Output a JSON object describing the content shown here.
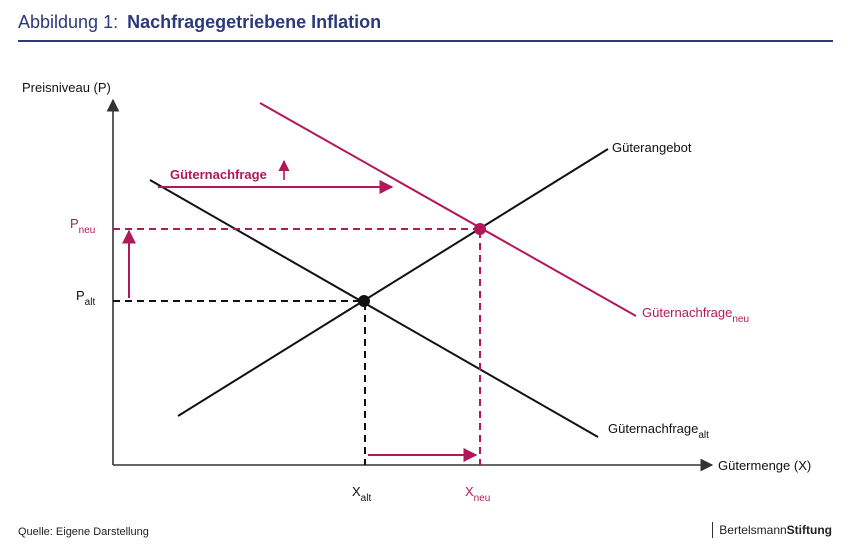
{
  "header": {
    "lead": "Abbildung 1:",
    "title": "Nachfragegetriebene Inflation"
  },
  "diagram": {
    "y_axis_label": "Preisniveau (P)",
    "x_axis_label": "Gütermenge (X)",
    "supply_label": "Güternachfrage",
    "supply_curve_label": "Güterangebot",
    "demand_old_label_main": "Güternachfrage",
    "demand_old_label_sub": "alt",
    "demand_new_label_main": "Güternachfrage",
    "demand_new_label_sub": "neu",
    "shift_label": "Güternachfrage",
    "p_new_main": "P",
    "p_new_sub": "neu",
    "p_old_main": "P",
    "p_old_sub": "alt",
    "x_old_main": "X",
    "x_old_sub": "alt",
    "x_new_main": "X",
    "x_new_sub": "neu"
  },
  "colors": {
    "accent": "#b0185a",
    "dark": "#111111",
    "navy": "#2b3a7a",
    "axis": "#333333"
  },
  "footer": {
    "source": "Quelle: Eigene Darstellung",
    "brand_light": "Bertelsmann",
    "brand_bold": "Stiftung"
  }
}
